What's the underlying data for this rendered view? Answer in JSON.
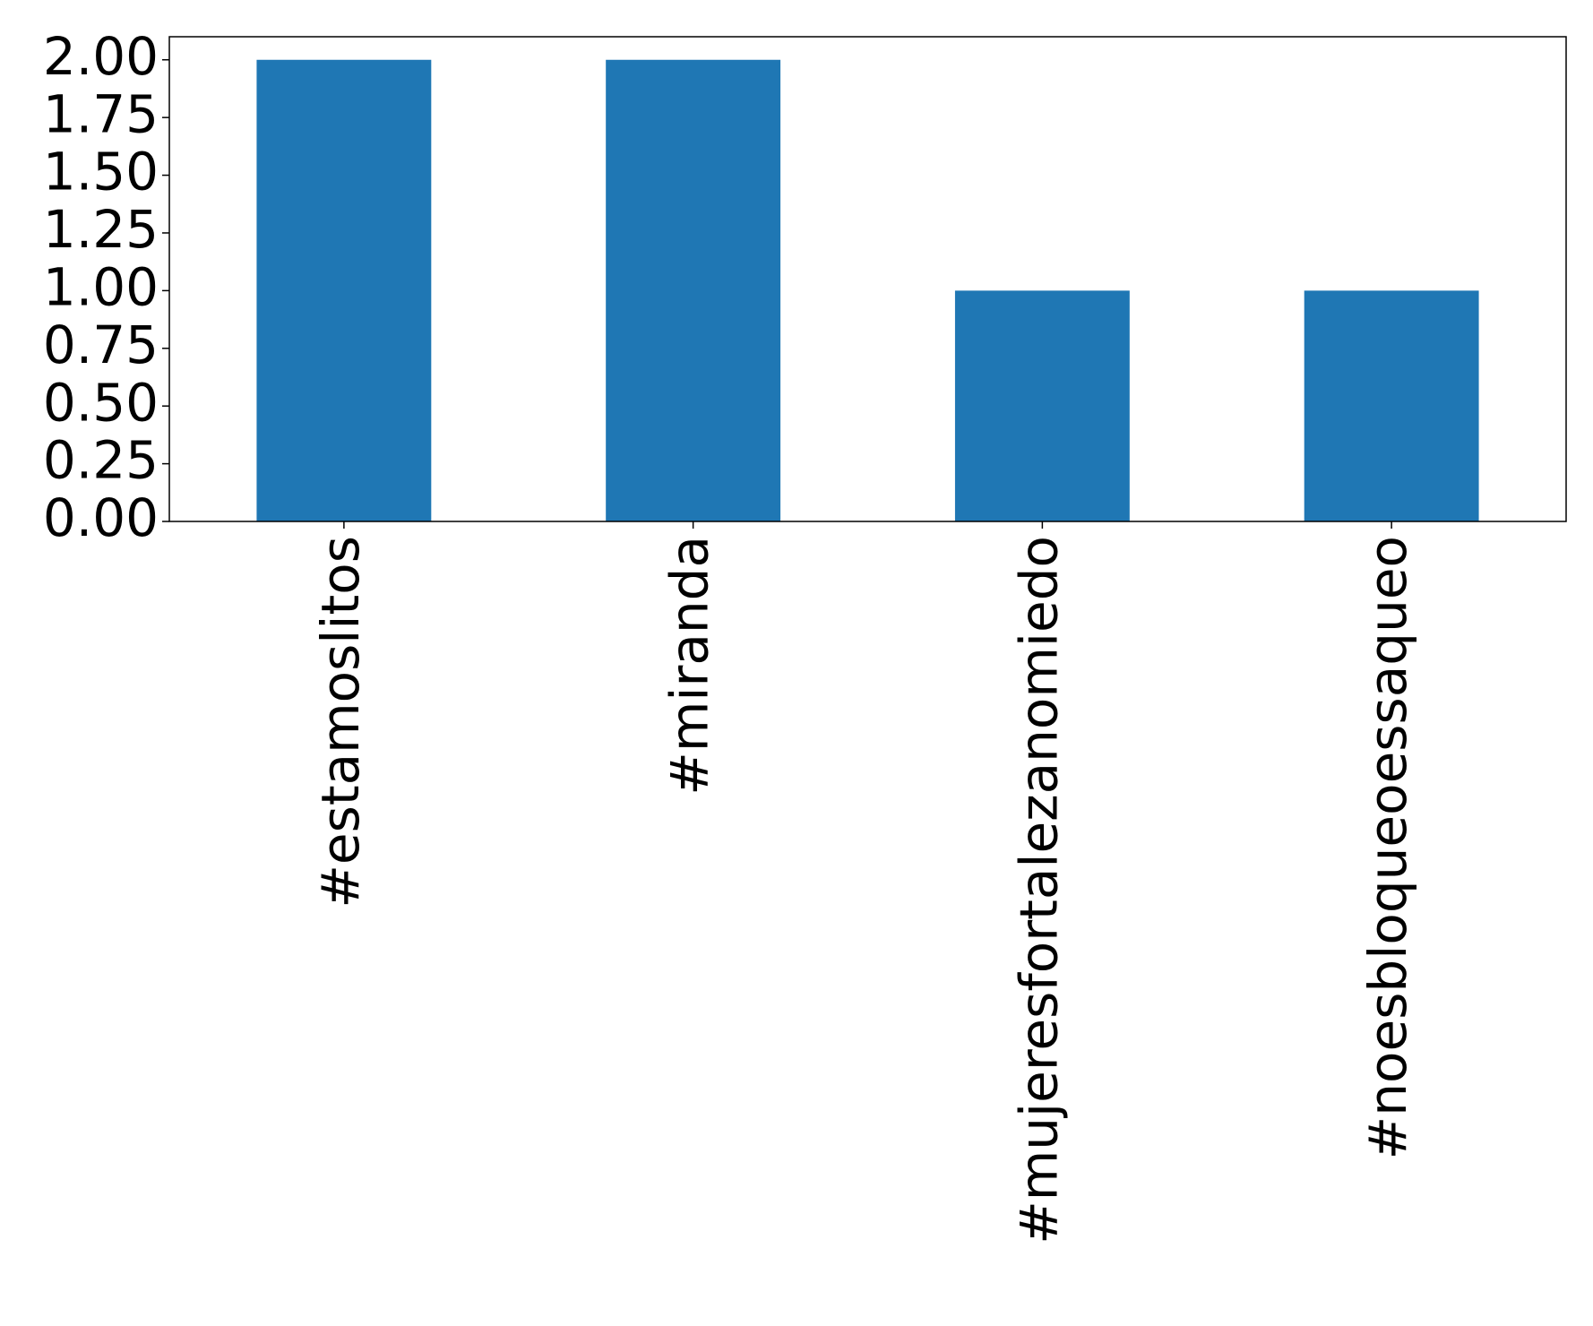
{
  "chart_data": {
    "type": "bar",
    "categories": [
      "#estamoslitos",
      "#miranda",
      "#mujeresfortalezanomiedo",
      "#noesbloqueoessaqueo"
    ],
    "values": [
      2,
      2,
      1,
      1
    ],
    "color": "#1f77b4",
    "ylim": [
      0,
      2.1
    ],
    "yticks": [
      {
        "value": 0,
        "label": "0.00"
      },
      {
        "value": 0.25,
        "label": "0.25"
      },
      {
        "value": 0.5,
        "label": "0.50"
      },
      {
        "value": 0.75,
        "label": "0.75"
      },
      {
        "value": 1,
        "label": "1.00"
      },
      {
        "value": 1.25,
        "label": "1.25"
      },
      {
        "value": 1.5,
        "label": "1.50"
      },
      {
        "value": 1.75,
        "label": "1.75"
      },
      {
        "value": 2,
        "label": "2.00"
      }
    ],
    "grid": false
  }
}
